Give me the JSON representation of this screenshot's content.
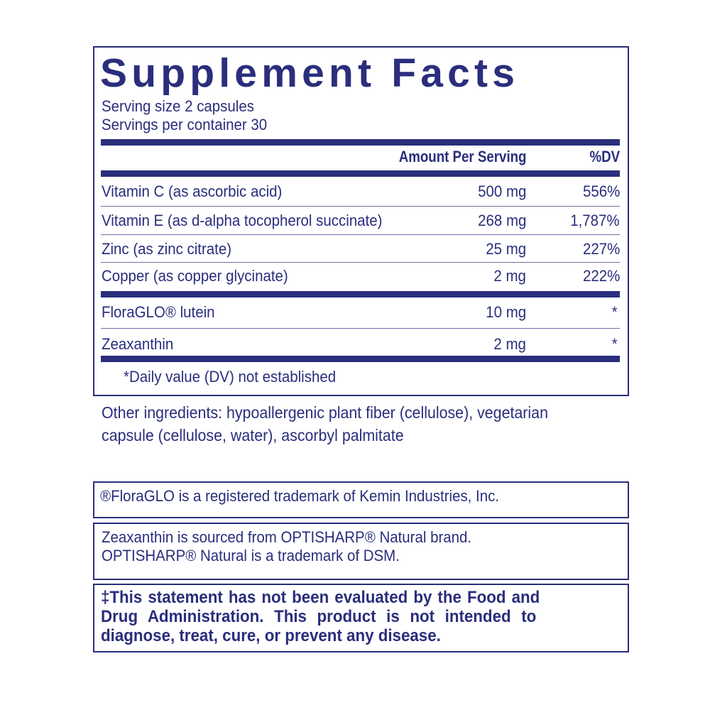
{
  "title": "Supplement Facts",
  "serving_size": "Serving size  2 capsules",
  "servings_per_container": "Servings per container  30",
  "header": {
    "amount": "Amount Per Serving",
    "dv": "%DV"
  },
  "rows": [
    {
      "name": "Vitamin C (as ascorbic acid)",
      "amount": "500 mg",
      "dv": "556%"
    },
    {
      "name": "Vitamin E (as d-alpha tocopherol succinate)",
      "amount": "268 mg",
      "dv": "1,787%"
    },
    {
      "name": "Zinc (as zinc citrate)",
      "amount": "25 mg",
      "dv": "227%"
    },
    {
      "name": "Copper (as copper glycinate)",
      "amount": "2 mg",
      "dv": "222%"
    },
    {
      "name": "FloraGLO® lutein",
      "amount": "10 mg",
      "dv": "*"
    },
    {
      "name": "Zeaxanthin",
      "amount": "2 mg",
      "dv": "*"
    }
  ],
  "footnote": "*Daily value (DV) not established",
  "other_ingredients": [
    "Other ingredients: hypoallergenic plant fiber (cellulose), vegetarian",
    "capsule (cellulose, water), ascorbyl palmitate"
  ],
  "trademark1": "®FloraGLO is a registered trademark of Kemin Industries, Inc.",
  "trademark2": [
    "Zeaxanthin is sourced from OPTISHARP® Natural brand.",
    "OPTISHARP® Natural is a trademark of DSM."
  ],
  "disclaimer": [
    "‡This statement has not been evaluated by the Food and",
    "Drug Administration. This product is not intended to",
    "diagnose, treat, cure, or prevent any disease."
  ]
}
